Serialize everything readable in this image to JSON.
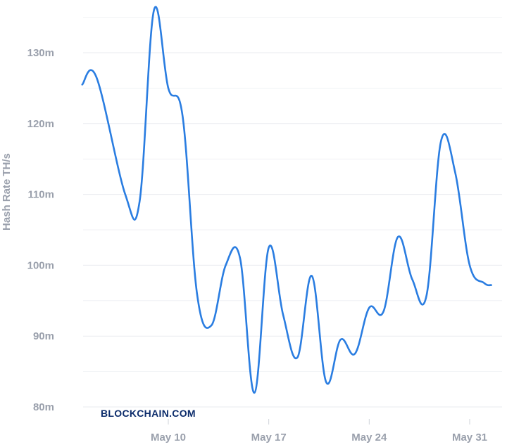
{
  "chart_data": {
    "type": "line",
    "ylabel": "Hash Rate TH/s",
    "y_ticks": [
      "80m",
      "90m",
      "100m",
      "110m",
      "120m",
      "130m"
    ],
    "ylim": [
      80,
      136
    ],
    "x_ticks": [
      "May 10",
      "May 17",
      "May 24",
      "May 31"
    ],
    "x_tick_positions": [
      10,
      17,
      24,
      31
    ],
    "xlim": [
      4,
      32.5
    ],
    "grid": true,
    "watermark": "BLOCKCHAIN.COM",
    "line_color": "#2a7de1",
    "series": [
      {
        "x": [
          4,
          5,
          7,
          8,
          9,
          10,
          11,
          12,
          13,
          14,
          15,
          16,
          17,
          18,
          19,
          20,
          21,
          22,
          23,
          24,
          25,
          26,
          27,
          28,
          29,
          30,
          31,
          32,
          32.5
        ],
        "values": [
          125.5,
          126.5,
          110,
          109,
          136,
          125,
          121,
          96,
          91.5,
          100,
          101,
          82,
          102.5,
          93,
          87,
          98.5,
          83.5,
          89.5,
          87.5,
          94,
          93.5,
          104,
          98,
          95.8,
          117.5,
          113,
          100,
          97.5,
          97.2
        ]
      }
    ]
  }
}
